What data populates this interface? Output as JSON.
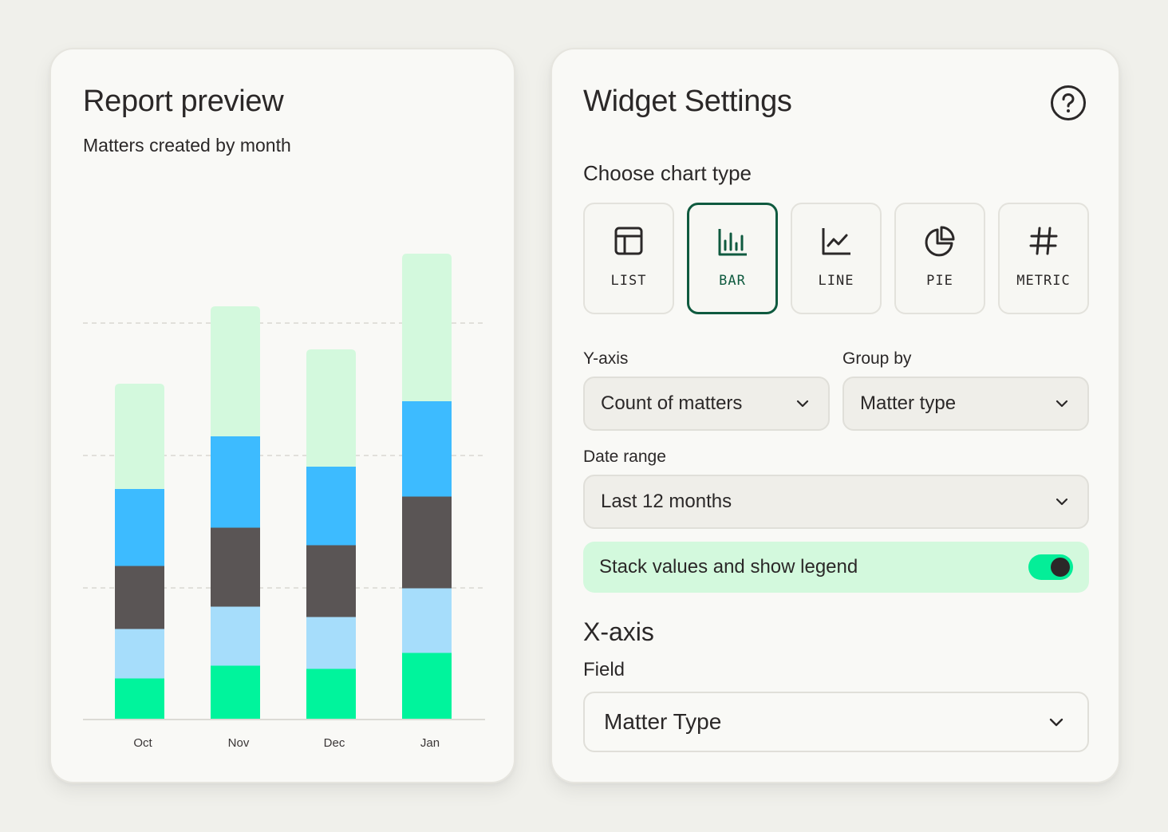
{
  "preview": {
    "title": "Report preview",
    "subtitle": "Matters created by month"
  },
  "chart_data": {
    "type": "bar",
    "stacked": true,
    "categories": [
      "Oct",
      "Nov",
      "Dec",
      "Jan"
    ],
    "series": [
      {
        "color": "#00f49c",
        "values": [
          52,
          68,
          64,
          84
        ]
      },
      {
        "color": "#a6ddfb",
        "values": [
          62,
          74,
          65,
          81
        ]
      },
      {
        "color": "#5a5555",
        "values": [
          79,
          99,
          90,
          115
        ]
      },
      {
        "color": "#3dbbff",
        "values": [
          96,
          114,
          98,
          119
        ]
      },
      {
        "color": "#d3f9dd",
        "values": [
          132,
          163,
          147,
          185
        ]
      }
    ],
    "ylim": [
      0,
      600
    ],
    "gridlines": [
      165,
      331,
      497
    ],
    "grid": true,
    "legend": "none"
  },
  "settings": {
    "title": "Widget Settings",
    "help_icon": "question-circle-icon",
    "chart_type_label": "Choose chart type",
    "chart_types": [
      {
        "label": "LIST",
        "icon": "table-icon",
        "selected": false
      },
      {
        "label": "BAR",
        "icon": "bar-chart-icon",
        "selected": true
      },
      {
        "label": "LINE",
        "icon": "line-chart-icon",
        "selected": false
      },
      {
        "label": "PIE",
        "icon": "pie-chart-icon",
        "selected": false
      },
      {
        "label": "METRIC",
        "icon": "hash-icon",
        "selected": false
      }
    ],
    "y_axis": {
      "label": "Y-axis",
      "value": "Count of matters"
    },
    "group_by": {
      "label": "Group by",
      "value": "Matter type"
    },
    "date_range": {
      "label": "Date range",
      "value": "Last 12 months"
    },
    "stack_toggle": {
      "label": "Stack values and show legend",
      "on": true
    },
    "x_axis": {
      "heading": "X-axis",
      "field_label": "Field",
      "field_value": "Matter Type"
    },
    "accent_color": "#0f5a3f",
    "toggle_color": "#04ee98"
  }
}
